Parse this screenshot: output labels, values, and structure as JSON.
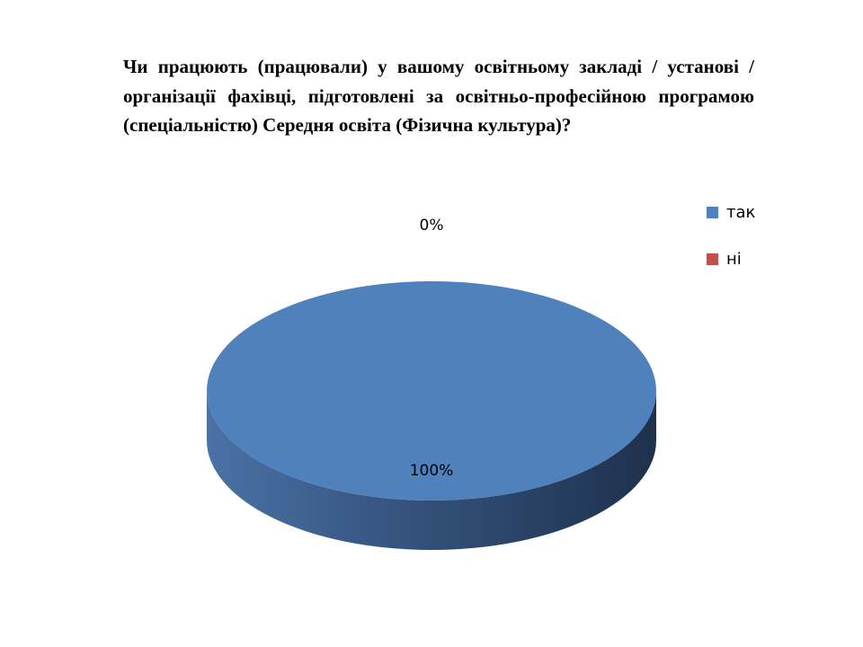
{
  "question": "Чи працюють (працювали) у вашому освітньому закладі / установі / організації фахівці, підготовлені за освітньо-професійною програмою (спеціальністю) Середня освіта (Фізична культура)?",
  "chart_data": {
    "type": "pie",
    "style": "3d",
    "title": "Чи працюють (працювали) у вашому освітньому закладі / установі / організації фахівці, підготовлені за освітньо-професійною програмою (спеціальністю) Середня освіта (Фізична культура)?",
    "categories": [
      "так",
      "ні"
    ],
    "values": [
      100,
      0
    ],
    "data_labels": [
      "100%",
      "0%"
    ],
    "colors": [
      "#4F81BD",
      "#C0504D"
    ],
    "legend_position": "right"
  }
}
